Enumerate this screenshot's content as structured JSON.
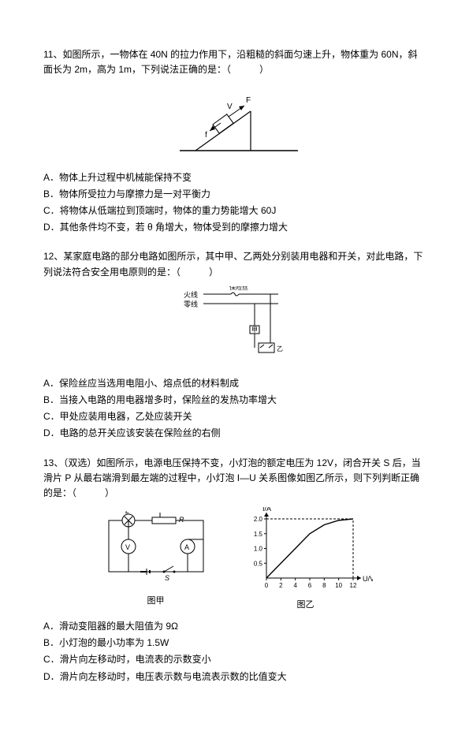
{
  "q11": {
    "stem": "11、如图所示，一物体在 40N 的拉力作用下，沿粗糙的斜面匀速上升，物体重为 60N，斜面长为 2m，高为 1m，下列说法正确的是：（　　　）",
    "optA": "A．物体上升过程中机械能保持不变",
    "optB": "B．物体所受拉力与摩擦力是一对平衡力",
    "optC": "C．将物体从低端拉到顶端时，物体的重力势能增大 60J",
    "optD": "D．其他条件均不变，若 θ 角增大，物体受到的摩擦力增大",
    "diagram": {
      "labelV": "V",
      "labelF": "F",
      "labelf": "f",
      "stroke": "#000000"
    }
  },
  "q12": {
    "stem": "12、某家庭电路的部分电路如图所示，其中甲、乙两处分别装用电器和开关，对此电路，下列说法符合安全用电原则的是：（　　　）",
    "optA": "A．保险丝应当选用电阻小、熔点低的材料制成",
    "optB": "B．当接入电路的用电器增多时，保险丝的发热功率增大",
    "optC": "C．甲处应装用电器，乙处应装开关",
    "optD": "D．电路的总开关应该安装在保险丝的右侧",
    "diagram": {
      "fuseLabel": "保险丝",
      "fire": "火线",
      "zero": "零线",
      "boxJia": "甲",
      "boxYi": "乙",
      "stroke": "#000000"
    }
  },
  "q13": {
    "stem": "13、（双选）如图所示，电源电压保持不变，小灯泡的额定电压为 12V，闭合开关 S 后，当滑片 P 从最右端滑到最左端的过程中，小灯泡 I—U 关系图像如图乙所示，则下列判断正确的是：（　　　）",
    "optA": "A．滑动变阻器的最大阻值为 9Ω",
    "optB": "B．小灯泡的最小功率为 1.5W",
    "optC": "C．滑片向左移动时，电流表的示数变小",
    "optD": "D．滑片向左移动时，电压表示数与电流表示数的比值变大",
    "circuit": {
      "labelL": "L",
      "labelP": "P",
      "labelR": "R",
      "labelS": "S",
      "labelV": "V",
      "labelA": "A",
      "caption": "图甲",
      "stroke": "#000000"
    },
    "chart": {
      "yLabel": "I/A",
      "xLabel": "U/V",
      "xTicks": [
        "0",
        "2",
        "4",
        "6",
        "8",
        "10",
        "12"
      ],
      "yTicks": [
        "0.5",
        "1.0",
        "1.5",
        "2.0"
      ],
      "xlim": [
        0,
        12
      ],
      "ylim": [
        0,
        2.0
      ],
      "points": [
        [
          0,
          0
        ],
        [
          2,
          0.5
        ],
        [
          4,
          1.0
        ],
        [
          6,
          1.5
        ],
        [
          8,
          1.8
        ],
        [
          10,
          1.95
        ],
        [
          12,
          2.0
        ]
      ],
      "dashX": 12,
      "dashY": 2.0,
      "stroke": "#000000",
      "caption": "图乙"
    }
  }
}
